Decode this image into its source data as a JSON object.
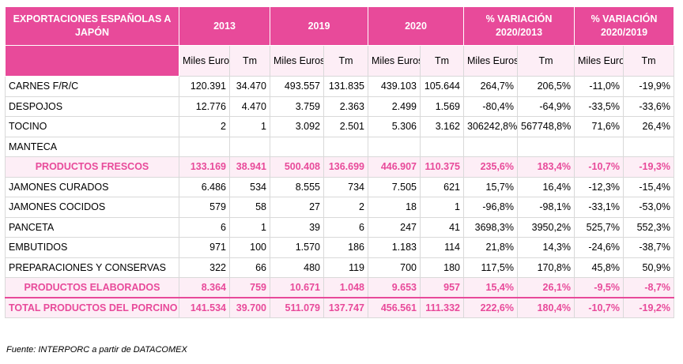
{
  "table": {
    "title": "EXPORTACIONES ESPAÑOLAS A JAPÓN",
    "groups": [
      "2013",
      "2019",
      "2020",
      "% VARIACIÓN 2020/2013",
      "% VARIACIÓN 2020/2019"
    ],
    "subheaders": [
      "Miles Euros",
      "Tm",
      "Miles Euros",
      "Tm",
      "Miles Euros",
      "Tm",
      "Miles Euros",
      "Tm",
      "Miles Euros",
      "Tm"
    ],
    "rows": [
      {
        "label": "CARNES F/R/C",
        "kind": "row",
        "values": [
          "120.391",
          "34.470",
          "493.557",
          "131.835",
          "439.103",
          "105.644",
          "264,7%",
          "206,5%",
          "-11,0%",
          "-19,9%"
        ]
      },
      {
        "label": "DESPOJOS",
        "kind": "row",
        "values": [
          "12.776",
          "4.470",
          "3.759",
          "2.363",
          "2.499",
          "1.569",
          "-80,4%",
          "-64,9%",
          "-33,5%",
          "-33,6%"
        ]
      },
      {
        "label": "TOCINO",
        "kind": "row",
        "values": [
          "2",
          "1",
          "3.092",
          "2.501",
          "5.306",
          "3.162",
          "306242,8%",
          "567748,8%",
          "71,6%",
          "26,4%"
        ]
      },
      {
        "label": "MANTECA",
        "kind": "row",
        "values": [
          "",
          "",
          "",
          "",
          "",
          "",
          "",
          "",
          "",
          ""
        ]
      },
      {
        "label": "PRODUCTOS FRESCOS",
        "kind": "sub",
        "values": [
          "133.169",
          "38.941",
          "500.408",
          "136.699",
          "446.907",
          "110.375",
          "235,6%",
          "183,4%",
          "-10,7%",
          "-19,3%"
        ]
      },
      {
        "label": "JAMONES CURADOS",
        "kind": "row",
        "values": [
          "6.486",
          "534",
          "8.555",
          "734",
          "7.505",
          "621",
          "15,7%",
          "16,4%",
          "-12,3%",
          "-15,4%"
        ]
      },
      {
        "label": "JAMONES COCIDOS",
        "kind": "row",
        "values": [
          "579",
          "58",
          "27",
          "2",
          "18",
          "1",
          "-96,8%",
          "-98,1%",
          "-33,1%",
          "-53,0%"
        ]
      },
      {
        "label": "PANCETA",
        "kind": "row",
        "values": [
          "6",
          "1",
          "39",
          "6",
          "247",
          "41",
          "3698,3%",
          "3950,2%",
          "525,7%",
          "552,3%"
        ]
      },
      {
        "label": "EMBUTIDOS",
        "kind": "row",
        "values": [
          "971",
          "100",
          "1.570",
          "186",
          "1.183",
          "114",
          "21,8%",
          "14,3%",
          "-24,6%",
          "-38,7%"
        ]
      },
      {
        "label": "PREPARACIONES Y CONSERVAS",
        "kind": "row",
        "values": [
          "322",
          "66",
          "480",
          "119",
          "700",
          "180",
          "117,5%",
          "170,8%",
          "45,8%",
          "50,9%"
        ]
      },
      {
        "label": "PRODUCTOS ELABORADOS",
        "kind": "sub",
        "values": [
          "8.364",
          "759",
          "10.671",
          "1.048",
          "9.653",
          "957",
          "15,4%",
          "26,1%",
          "-9,5%",
          "-8,7%"
        ]
      },
      {
        "label": "TOTAL PRODUCTOS DEL PORCINO",
        "kind": "total",
        "values": [
          "141.534",
          "39.700",
          "511.079",
          "137.747",
          "456.561",
          "111.332",
          "222,6%",
          "180,4%",
          "-10,7%",
          "-19,2%"
        ]
      }
    ]
  },
  "source": "Fuente: INTERPORC a partir de DATACOMEX",
  "colors": {
    "accent": "#e84a9a",
    "accent_light": "#fdeef6"
  }
}
